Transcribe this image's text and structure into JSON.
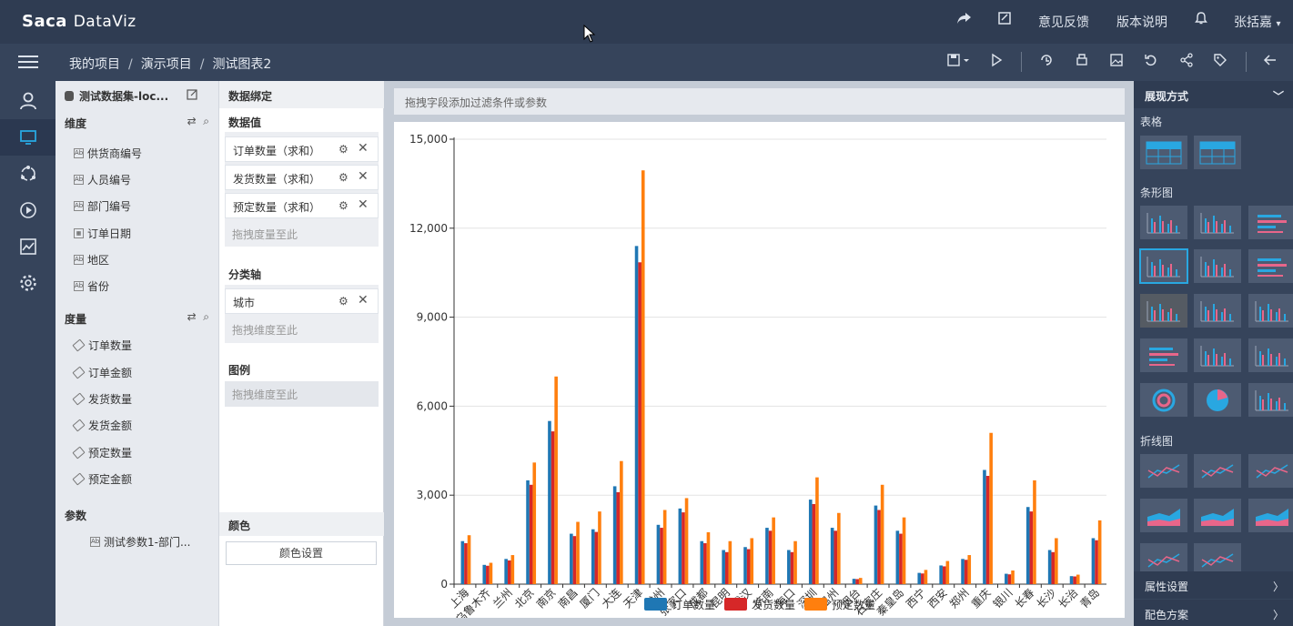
{
  "app": {
    "logo": "Saca",
    "logo_suffix": "DataViz"
  },
  "header": {
    "feedback": "意见反馈",
    "version": "版本说明",
    "user": "张括嘉"
  },
  "breadcrumb": [
    "我的项目",
    "演示项目",
    "测试图表2"
  ],
  "left_panel": {
    "dataset": "测试数据集-loc...",
    "dimension_title": "维度",
    "dimensions": [
      {
        "label": "供货商编号",
        "kind": "Ab"
      },
      {
        "label": "人员编号",
        "kind": "Ab"
      },
      {
        "label": "部门编号",
        "kind": "Ab"
      },
      {
        "label": "订单日期",
        "kind": "date"
      },
      {
        "label": "地区",
        "kind": "Ab"
      },
      {
        "label": "省份",
        "kind": "Ab"
      }
    ],
    "measure_title": "度量",
    "measures": [
      "订单数量",
      "订单金额",
      "发货数量",
      "发货金额",
      "预定数量",
      "预定金额"
    ],
    "param_title": "参数",
    "params": [
      "测试参数1-部门..."
    ]
  },
  "binding": {
    "title": "数据绑定",
    "values_title": "数据值",
    "values": [
      "订单数量（求和）",
      "发货数量（求和）",
      "预定数量（求和）"
    ],
    "values_drop": "拖拽度量至此",
    "axis_title": "分类轴",
    "axis_items": [
      "城市"
    ],
    "axis_drop": "拖拽维度至此",
    "legend_title": "图例",
    "legend_drop": "拖拽维度至此",
    "color_title": "颜色",
    "color_button": "颜色设置"
  },
  "filter_placeholder": "拖拽字段添加过滤条件或参数",
  "right_panel": {
    "title": "展现方式",
    "sections": [
      "表格",
      "条形图",
      "折线图"
    ],
    "property": "属性设置",
    "scheme": "配色方案"
  },
  "chart_data": {
    "type": "bar",
    "categories": [
      "上海",
      "乌鲁木齐",
      "兰州",
      "北京",
      "南京",
      "南昌",
      "厦门",
      "大连",
      "天津",
      "常州",
      "张家口",
      "成都",
      "昆明",
      "武汉",
      "济南",
      "海口",
      "深圳",
      "温州",
      "烟台",
      "石家庄",
      "秦皇岛",
      "西宁",
      "西安",
      "郑州",
      "重庆",
      "银川",
      "长春",
      "长沙",
      "长治",
      "青岛"
    ],
    "series": [
      {
        "name": "订单数量",
        "color": "#1f77b4",
        "values": [
          1450,
          650,
          850,
          3500,
          5500,
          1700,
          1850,
          3300,
          11400,
          2000,
          2550,
          1450,
          1150,
          1250,
          1900,
          1150,
          2850,
          1900,
          180,
          2650,
          1800,
          380,
          630,
          850,
          3850,
          350,
          2600,
          1150,
          270,
          1550
        ]
      },
      {
        "name": "发货数量",
        "color": "#d62728",
        "values": [
          1380,
          620,
          800,
          3350,
          5150,
          1620,
          1760,
          3100,
          10850,
          1900,
          2420,
          1380,
          1080,
          1180,
          1800,
          1080,
          2700,
          1800,
          170,
          2500,
          1700,
          360,
          600,
          820,
          3650,
          330,
          2450,
          1080,
          260,
          1480
        ]
      },
      {
        "name": "预定数量",
        "color": "#ff7f0e",
        "values": [
          1650,
          720,
          980,
          4100,
          7000,
          2100,
          2450,
          4150,
          13950,
          2500,
          2900,
          1750,
          1450,
          1550,
          2250,
          1450,
          3600,
          2400,
          210,
          3350,
          2250,
          480,
          780,
          980,
          5100,
          460,
          3500,
          1550,
          320,
          2150
        ]
      }
    ],
    "y_ticks": [
      "0",
      "3,000",
      "6,000",
      "9,000",
      "12,000",
      "15,000"
    ],
    "ylim": [
      0,
      15000
    ],
    "legend": "bottom",
    "grid": true
  }
}
